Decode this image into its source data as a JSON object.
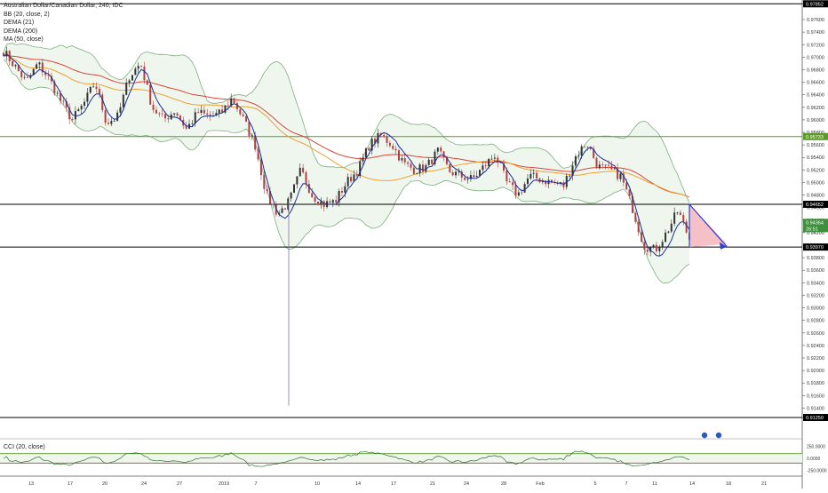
{
  "legend": {
    "symbol": "Australian Dollar/Canadian Dollar, 240, IDC",
    "bb": "BB (20, close, 2)",
    "dema1": "DEMA (21)",
    "dema2": "DEMA (200)",
    "ma": "MA (50, close)",
    "cci": "CCI (20, close)"
  },
  "colors": {
    "up": "#333333",
    "down": "#b24242",
    "bb_band": "#7eaf7e",
    "bb_fill": "#eef6ee",
    "dema21": "#1c2f99",
    "dema200": "#d9463a",
    "ma50": "#f0a030",
    "green_line": "#5b9a2a",
    "black_line": "#000000",
    "arrow": "#2c3ed6",
    "tri_fill": "#f5b5bd"
  },
  "chart_data": {
    "type": "candlestick",
    "title": "Australian Dollar/Canadian Dollar, 240, IDC",
    "ylim": [
      0.9108,
      0.9787
    ],
    "y_ticks": [
      "0.97852",
      "0.97600",
      "0.97400",
      "0.97200",
      "0.97000",
      "0.96800",
      "0.96600",
      "0.96400",
      "0.96200",
      "0.96000",
      "0.95800",
      "0.95600",
      "0.95400",
      "0.95200",
      "0.95000",
      "0.94800",
      "0.94600",
      "0.94400",
      "0.94200",
      "0.94000",
      "0.93800",
      "0.93600",
      "0.93400",
      "0.93200",
      "0.93000",
      "0.92800",
      "0.92600",
      "0.92400",
      "0.92200",
      "0.92000",
      "0.91800",
      "0.91600",
      "0.91400",
      "0.91250"
    ],
    "x_ticks": [
      "13",
      "17",
      "20",
      "24",
      "27",
      "2019",
      "7",
      "10",
      "14",
      "17",
      "21",
      "24",
      "28",
      "Feb",
      "5",
      "7",
      "11",
      "14",
      "18",
      "21"
    ],
    "horizontal_levels": [
      {
        "label": "0.95733",
        "value": 0.95733,
        "color": "#5b9a2a"
      },
      {
        "label": "0.94652",
        "value": 0.94652,
        "color": "#000000"
      },
      {
        "label": "0.93970",
        "value": 0.9397,
        "color": "#000000"
      },
      {
        "label": "0.97852",
        "value": 0.97852,
        "color": "#000000"
      },
      {
        "label": "0.91250",
        "value": 0.9125,
        "color": "#000000"
      }
    ],
    "price_tags": [
      {
        "label": "0.94364",
        "value": 0.94364
      },
      {
        "label": "26:51",
        "value": 0.94264
      }
    ],
    "close_anchors": [
      0.971,
      0.9685,
      0.966,
      0.969,
      0.9665,
      0.963,
      0.96,
      0.9625,
      0.966,
      0.9595,
      0.9605,
      0.967,
      0.969,
      0.962,
      0.96,
      0.9615,
      0.9585,
      0.9612,
      0.9605,
      0.961,
      0.9635,
      0.96,
      0.956,
      0.948,
      0.945,
      0.947,
      0.952,
      0.948,
      0.9465,
      0.947,
      0.95,
      0.952,
      0.956,
      0.9575,
      0.956,
      0.953,
      0.952,
      0.9525,
      0.955,
      0.9518,
      0.951,
      0.9505,
      0.9525,
      0.9545,
      0.95,
      0.948,
      0.951,
      0.9505,
      0.95,
      0.9495,
      0.954,
      0.9565,
      0.9525,
      0.952,
      0.951,
      0.946,
      0.94,
      0.9392,
      0.942,
      0.9455,
      0.941
    ],
    "cci": {
      "ylim": [
        -300,
        300
      ],
      "ticks": [
        "250.0000",
        "0.0000",
        "-250.0000"
      ],
      "level_upper": 100,
      "level_lower": -100
    },
    "projection": {
      "triangle": [
        [
          0.9466,
          "start"
        ],
        [
          0.9398,
          "mid"
        ],
        [
          0.94,
          "end"
        ]
      ],
      "arrow_end": 0.9398
    }
  }
}
